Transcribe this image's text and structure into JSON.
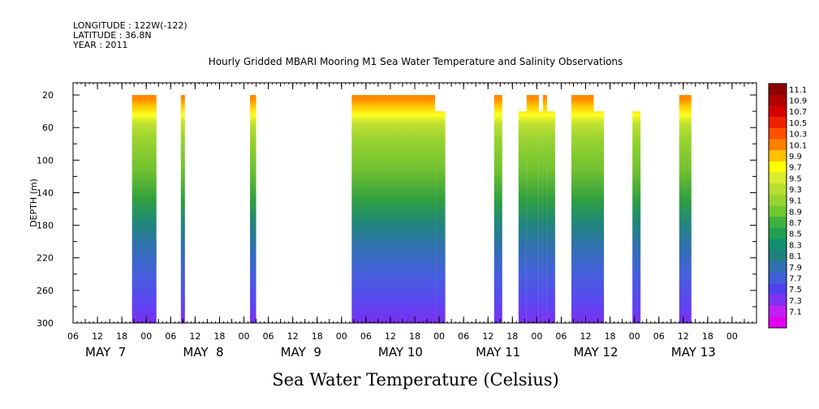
{
  "meta": {
    "longitude": "LONGITUDE : 122W(-122)",
    "latitude": "LATITUDE : 36.8N",
    "year": "YEAR : 2011"
  },
  "chart_data": {
    "type": "heatmap",
    "title": "Hourly Gridded MBARI Mooring M1 Sea Water Temperature and Salinity Observations",
    "xlabel": "Sea Water Temperature (Celsius)",
    "ylabel": "DEPTH (m)",
    "x_hour_ticks": [
      "06",
      "12",
      "18",
      "00",
      "06",
      "12",
      "18",
      "00",
      "06",
      "12",
      "18",
      "00",
      "06",
      "12",
      "18",
      "00",
      "06",
      "12",
      "18",
      "00",
      "06",
      "12",
      "18",
      "00",
      "06",
      "12",
      "18",
      "00"
    ],
    "x_day_labels": [
      "MAY  7",
      "MAY  8",
      "MAY  9",
      "MAY 10",
      "MAY 11",
      "MAY 12",
      "MAY 13"
    ],
    "y_ticks": [
      20,
      60,
      100,
      140,
      180,
      220,
      260,
      300
    ],
    "ylim": [
      300,
      5
    ],
    "x_range_hours": [
      0,
      168
    ],
    "colorbar": {
      "labels": [
        "11.1",
        "10.9",
        "10.7",
        "10.5",
        "10.3",
        "10.1",
        "9.9",
        "9.7",
        "9.5",
        "9.3",
        "9.1",
        "8.9",
        "8.7",
        "8.5",
        "8.3",
        "8.1",
        "7.9",
        "7.7",
        "7.5",
        "7.3",
        "7.1"
      ],
      "colors": [
        "#8b0000",
        "#b00000",
        "#d40000",
        "#ee2000",
        "#ff5000",
        "#ff8000",
        "#ffc000",
        "#ffff00",
        "#d8ec30",
        "#b8de30",
        "#98d430",
        "#70c830",
        "#40b040",
        "#20a050",
        "#109070",
        "#208080",
        "#3070b0",
        "#4060d8",
        "#5040f0",
        "#8030f0",
        "#c020f0",
        "#e000f0"
      ]
    },
    "segments": [
      {
        "start": 14.5,
        "end": 20.5,
        "top": 20
      },
      {
        "start": 26.5,
        "end": 27.5,
        "top": 20
      },
      {
        "start": 43.5,
        "end": 45,
        "top": 20
      },
      {
        "start": 68.5,
        "end": 89,
        "top": 20
      },
      {
        "start": 89,
        "end": 91.5,
        "top": 40
      },
      {
        "start": 103.5,
        "end": 105.5,
        "top": 20
      },
      {
        "start": 109.5,
        "end": 111.5,
        "top": 40
      },
      {
        "start": 111.5,
        "end": 114.5,
        "top": 20
      },
      {
        "start": 114.5,
        "end": 115.5,
        "top": 40
      },
      {
        "start": 115.5,
        "end": 116.5,
        "top": 20
      },
      {
        "start": 116.5,
        "end": 118.5,
        "top": 40
      },
      {
        "start": 122.5,
        "end": 128,
        "top": 20
      },
      {
        "start": 128,
        "end": 130.5,
        "top": 40
      },
      {
        "start": 137.5,
        "end": 139.5,
        "top": 40
      },
      {
        "start": 149,
        "end": 152,
        "top": 20
      }
    ]
  }
}
